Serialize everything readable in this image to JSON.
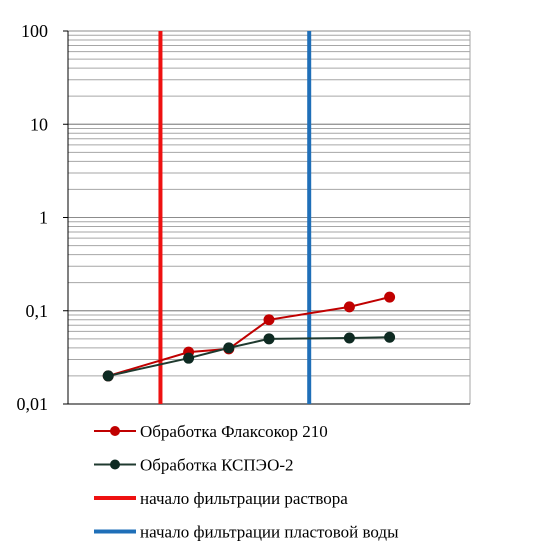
{
  "chart_data": {
    "type": "line",
    "y_scale": "log",
    "ylim": [
      0.01,
      100
    ],
    "xlim": [
      0,
      10
    ],
    "y_ticks": [
      {
        "value": 0.01,
        "label": "0,01"
      },
      {
        "value": 0.1,
        "label": "0,1"
      },
      {
        "value": 1,
        "label": "1"
      },
      {
        "value": 10,
        "label": "10"
      },
      {
        "value": 100,
        "label": "100"
      }
    ],
    "grid": "horizontal",
    "legend_position": "bottom",
    "series": [
      {
        "name": "Обработка Флаксокор 210",
        "color": "#c00000",
        "marker_color": "#c00000",
        "points": [
          {
            "x": 1,
            "y": 0.02
          },
          {
            "x": 3,
            "y": 0.036
          },
          {
            "x": 4,
            "y": 0.039
          },
          {
            "x": 5,
            "y": 0.08
          },
          {
            "x": 7,
            "y": 0.11
          },
          {
            "x": 8,
            "y": 0.14
          }
        ]
      },
      {
        "name": "Обработка КСПЭО-2",
        "color": "#1f3a2f",
        "marker_color": "#0e2a22",
        "points": [
          {
            "x": 1,
            "y": 0.02
          },
          {
            "x": 3,
            "y": 0.031
          },
          {
            "x": 4,
            "y": 0.04
          },
          {
            "x": 5,
            "y": 0.05
          },
          {
            "x": 7,
            "y": 0.051
          },
          {
            "x": 8,
            "y": 0.052
          }
        ]
      }
    ],
    "vertical_lines": [
      {
        "name": "начало фильтрации раствора",
        "x": 2.3,
        "color": "#ee1111"
      },
      {
        "name": "начало фильтрации пластовой воды",
        "x": 6,
        "color": "#1f6fb8"
      }
    ]
  }
}
